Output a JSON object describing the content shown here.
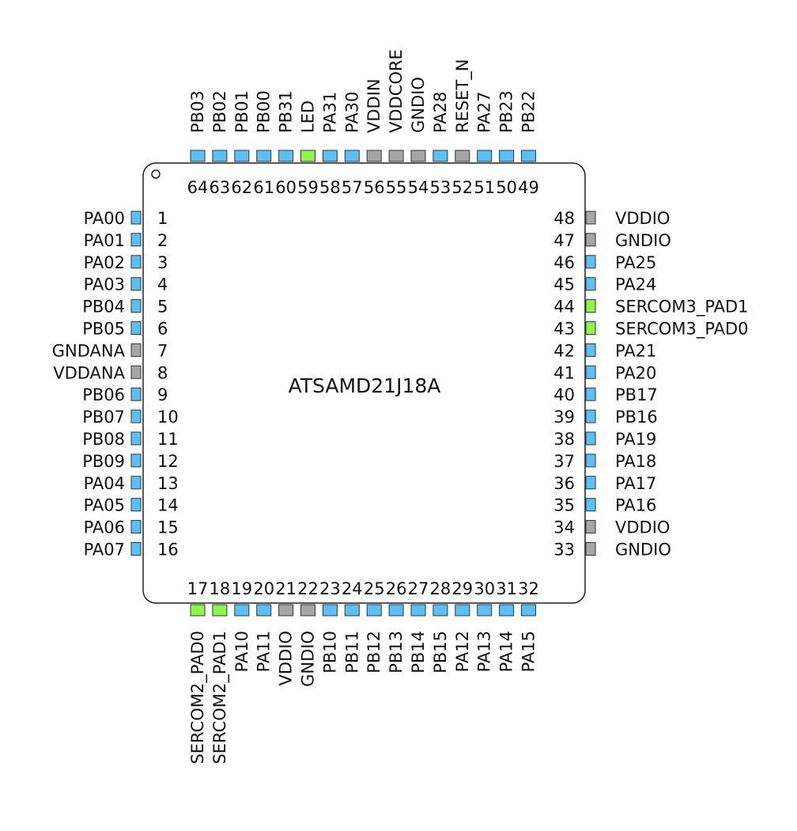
{
  "chip": {
    "name": "ATSAMD21J18A"
  },
  "colors": {
    "io": "#5bc0f5",
    "power": "#a6a6a6",
    "highlight": "#8ef54a"
  },
  "pins": {
    "left": [
      {
        "num": "1",
        "name": "PA00",
        "type": "io"
      },
      {
        "num": "2",
        "name": "PA01",
        "type": "io"
      },
      {
        "num": "3",
        "name": "PA02",
        "type": "io"
      },
      {
        "num": "4",
        "name": "PA03",
        "type": "io"
      },
      {
        "num": "5",
        "name": "PB04",
        "type": "io"
      },
      {
        "num": "6",
        "name": "PB05",
        "type": "io"
      },
      {
        "num": "7",
        "name": "GNDANA",
        "type": "power"
      },
      {
        "num": "8",
        "name": "VDDANA",
        "type": "power"
      },
      {
        "num": "9",
        "name": "PB06",
        "type": "io"
      },
      {
        "num": "10",
        "name": "PB07",
        "type": "io"
      },
      {
        "num": "11",
        "name": "PB08",
        "type": "io"
      },
      {
        "num": "12",
        "name": "PB09",
        "type": "io"
      },
      {
        "num": "13",
        "name": "PA04",
        "type": "io"
      },
      {
        "num": "14",
        "name": "PA05",
        "type": "io"
      },
      {
        "num": "15",
        "name": "PA06",
        "type": "io"
      },
      {
        "num": "16",
        "name": "PA07",
        "type": "io"
      }
    ],
    "bottom": [
      {
        "num": "17",
        "name": "SERCOM2_PAD0",
        "type": "highlight"
      },
      {
        "num": "18",
        "name": "SERCOM2_PAD1",
        "type": "highlight"
      },
      {
        "num": "19",
        "name": "PA10",
        "type": "io"
      },
      {
        "num": "20",
        "name": "PA11",
        "type": "io"
      },
      {
        "num": "21",
        "name": "VDDIO",
        "type": "power"
      },
      {
        "num": "22",
        "name": "GNDIO",
        "type": "power"
      },
      {
        "num": "23",
        "name": "PB10",
        "type": "io"
      },
      {
        "num": "24",
        "name": "PB11",
        "type": "io"
      },
      {
        "num": "25",
        "name": "PB12",
        "type": "io"
      },
      {
        "num": "26",
        "name": "PB13",
        "type": "io"
      },
      {
        "num": "27",
        "name": "PB14",
        "type": "io"
      },
      {
        "num": "28",
        "name": "PB15",
        "type": "io"
      },
      {
        "num": "29",
        "name": "PA12",
        "type": "io"
      },
      {
        "num": "30",
        "name": "PA13",
        "type": "io"
      },
      {
        "num": "31",
        "name": "PA14",
        "type": "io"
      },
      {
        "num": "32",
        "name": "PA15",
        "type": "io"
      }
    ],
    "right": [
      {
        "num": "48",
        "name": "VDDIO",
        "type": "power"
      },
      {
        "num": "47",
        "name": "GNDIO",
        "type": "power"
      },
      {
        "num": "46",
        "name": "PA25",
        "type": "io"
      },
      {
        "num": "45",
        "name": "PA24",
        "type": "io"
      },
      {
        "num": "44",
        "name": "SERCOM3_PAD1",
        "type": "highlight"
      },
      {
        "num": "43",
        "name": "SERCOM3_PAD0",
        "type": "highlight"
      },
      {
        "num": "42",
        "name": "PA21",
        "type": "io"
      },
      {
        "num": "41",
        "name": "PA20",
        "type": "io"
      },
      {
        "num": "40",
        "name": "PB17",
        "type": "io"
      },
      {
        "num": "39",
        "name": "PB16",
        "type": "io"
      },
      {
        "num": "38",
        "name": "PA19",
        "type": "io"
      },
      {
        "num": "37",
        "name": "PA18",
        "type": "io"
      },
      {
        "num": "36",
        "name": "PA17",
        "type": "io"
      },
      {
        "num": "35",
        "name": "PA16",
        "type": "io"
      },
      {
        "num": "34",
        "name": "VDDIO",
        "type": "power"
      },
      {
        "num": "33",
        "name": "GNDIO",
        "type": "power"
      }
    ],
    "top": [
      {
        "num": "64",
        "name": "PB03",
        "type": "io"
      },
      {
        "num": "63",
        "name": "PB02",
        "type": "io"
      },
      {
        "num": "62",
        "name": "PB01",
        "type": "io"
      },
      {
        "num": "61",
        "name": "PB00",
        "type": "io"
      },
      {
        "num": "60",
        "name": "PB31",
        "type": "io"
      },
      {
        "num": "59",
        "name": "LED",
        "type": "highlight"
      },
      {
        "num": "58",
        "name": "PA31",
        "type": "io"
      },
      {
        "num": "57",
        "name": "PA30",
        "type": "io"
      },
      {
        "num": "56",
        "name": "VDDIN",
        "type": "power"
      },
      {
        "num": "55",
        "name": "VDDCORE",
        "type": "power"
      },
      {
        "num": "54",
        "name": "GNDIO",
        "type": "power"
      },
      {
        "num": "53",
        "name": "PA28",
        "type": "io"
      },
      {
        "num": "52",
        "name": "RESET_N",
        "type": "power"
      },
      {
        "num": "51",
        "name": "PA27",
        "type": "io"
      },
      {
        "num": "50",
        "name": "PB23",
        "type": "io"
      },
      {
        "num": "49",
        "name": "PB22",
        "type": "io"
      }
    ]
  }
}
